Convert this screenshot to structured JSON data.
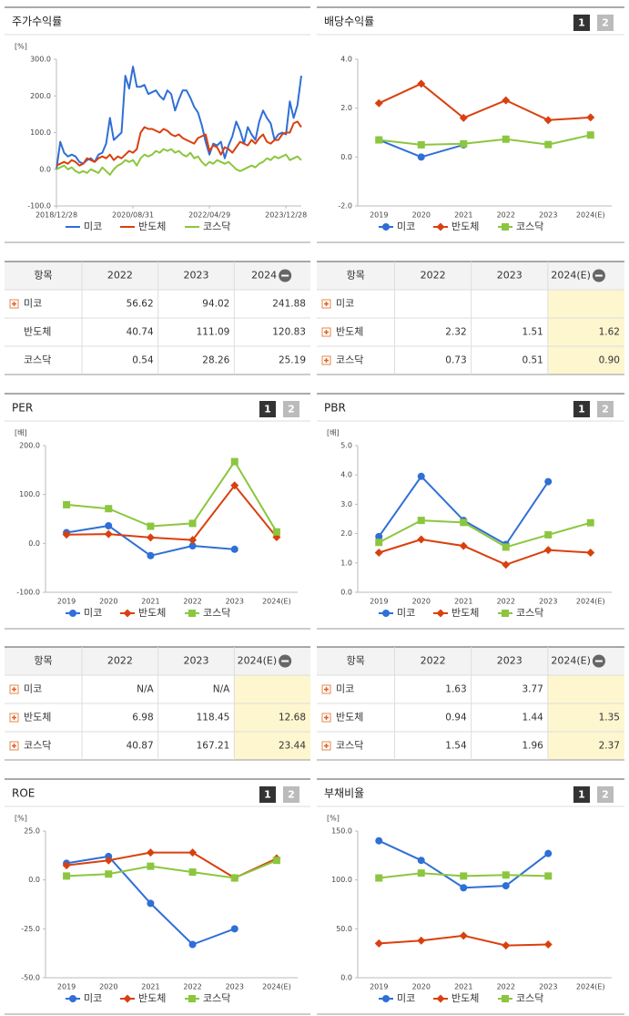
{
  "chart_data": [
    {
      "type": "line",
      "title": "주가수익률",
      "unit": "[%]",
      "markers": false,
      "xlim": [
        0,
        64
      ],
      "xticks": [
        {
          "value": 0,
          "label": "2018/12/28"
        },
        {
          "value": 20,
          "label": "2020/08/31"
        },
        {
          "value": 40,
          "label": "2022/04/29"
        },
        {
          "value": 60,
          "label": "2023/12/28"
        }
      ],
      "ylim": [
        -100,
        300
      ],
      "yticks": [
        {
          "value": -100,
          "label": "-100.0"
        },
        {
          "value": 0,
          "label": "0.0"
        },
        {
          "value": 100,
          "label": "100.0"
        },
        {
          "value": 200,
          "label": "200.0"
        },
        {
          "value": 300,
          "label": "300.0"
        }
      ],
      "series": [
        {
          "name": "미코",
          "color": "#2f6fd6",
          "marker": "circle",
          "values": [
            0,
            75,
            45,
            35,
            40,
            35,
            20,
            15,
            25,
            30,
            20,
            40,
            45,
            70,
            140,
            80,
            90,
            100,
            255,
            220,
            280,
            225,
            225,
            230,
            205,
            210,
            215,
            200,
            190,
            215,
            205,
            160,
            190,
            215,
            215,
            195,
            170,
            155,
            120,
            75,
            40,
            70,
            65,
            75,
            30,
            65,
            90,
            130,
            105,
            70,
            115,
            95,
            80,
            130,
            160,
            140,
            125,
            80,
            95,
            100,
            95,
            185,
            140,
            175,
            255
          ]
        },
        {
          "name": "반도체",
          "color": "#d9400f",
          "marker": "diamond",
          "values": [
            10,
            15,
            20,
            15,
            25,
            20,
            10,
            15,
            30,
            25,
            20,
            30,
            35,
            30,
            40,
            25,
            35,
            30,
            40,
            50,
            45,
            55,
            100,
            115,
            110,
            110,
            105,
            100,
            110,
            105,
            95,
            90,
            95,
            85,
            80,
            75,
            70,
            85,
            90,
            95,
            50,
            65,
            60,
            40,
            60,
            55,
            45,
            60,
            75,
            70,
            65,
            80,
            70,
            85,
            95,
            75,
            70,
            80,
            80,
            95,
            100,
            100,
            125,
            130,
            115
          ]
        },
        {
          "name": "코스닥",
          "color": "#8cc63f",
          "marker": "square",
          "values": [
            0,
            5,
            10,
            0,
            5,
            -5,
            -10,
            -5,
            -10,
            0,
            -5,
            -10,
            5,
            -5,
            -15,
            0,
            10,
            15,
            25,
            20,
            25,
            10,
            30,
            40,
            35,
            40,
            50,
            45,
            55,
            50,
            55,
            45,
            50,
            40,
            35,
            45,
            30,
            35,
            20,
            10,
            20,
            15,
            25,
            20,
            15,
            20,
            10,
            0,
            -5,
            0,
            5,
            10,
            5,
            15,
            20,
            30,
            25,
            35,
            30,
            35,
            40,
            25,
            30,
            35,
            25
          ]
        }
      ]
    },
    {
      "type": "line",
      "title": "배당수익률",
      "tabs": [
        "1",
        "2"
      ],
      "markers": true,
      "categories": [
        "2019",
        "2020",
        "2021",
        "2022",
        "2023",
        "2024(E)"
      ],
      "ylim": [
        -2,
        4
      ],
      "yticks": [
        {
          "value": -2,
          "label": "-2.0"
        },
        {
          "value": 0,
          "label": "0.0"
        },
        {
          "value": 2,
          "label": "2.0"
        },
        {
          "value": 4,
          "label": "4.0"
        }
      ],
      "series": [
        {
          "name": "미코",
          "color": "#2f6fd6",
          "marker": "circle",
          "values": [
            0.7,
            0.0,
            0.5,
            null,
            null,
            null
          ]
        },
        {
          "name": "반도체",
          "color": "#d9400f",
          "marker": "diamond",
          "values": [
            2.2,
            3.0,
            1.6,
            2.32,
            1.51,
            1.62
          ]
        },
        {
          "name": "코스닥",
          "color": "#8cc63f",
          "marker": "square",
          "values": [
            0.7,
            0.5,
            0.54,
            0.73,
            0.51,
            0.9
          ]
        }
      ]
    },
    {
      "type": "line",
      "title": "PER",
      "tabs": [
        "1",
        "2"
      ],
      "unit": "[배]",
      "markers": true,
      "categories": [
        "2019",
        "2020",
        "2021",
        "2022",
        "2023",
        "2024(E)"
      ],
      "ylim": [
        -100,
        200
      ],
      "yticks": [
        {
          "value": -100,
          "label": "-100.0"
        },
        {
          "value": 0,
          "label": "0.0"
        },
        {
          "value": 100,
          "label": "100.0"
        },
        {
          "value": 200,
          "label": "200.0"
        }
      ],
      "series": [
        {
          "name": "미코",
          "color": "#2f6fd6",
          "marker": "circle",
          "values": [
            22,
            36,
            -25,
            -5,
            -12,
            null
          ]
        },
        {
          "name": "반도체",
          "color": "#d9400f",
          "marker": "diamond",
          "values": [
            18,
            19,
            12,
            6.98,
            118.45,
            12.68
          ]
        },
        {
          "name": "코스닥",
          "color": "#8cc63f",
          "marker": "square",
          "values": [
            79,
            71,
            35,
            40.87,
            167.21,
            23.44
          ]
        }
      ]
    },
    {
      "type": "line",
      "title": "PBR",
      "tabs": [
        "1",
        "2"
      ],
      "unit": "[배]",
      "markers": true,
      "categories": [
        "2019",
        "2020",
        "2021",
        "2022",
        "2023",
        "2024(E)"
      ],
      "ylim": [
        0,
        5
      ],
      "yticks": [
        {
          "value": 0,
          "label": "0.0"
        },
        {
          "value": 1,
          "label": "1.0"
        },
        {
          "value": 2,
          "label": "2.0"
        },
        {
          "value": 3,
          "label": "3.0"
        },
        {
          "value": 4,
          "label": "4.0"
        },
        {
          "value": 5,
          "label": "5.0"
        }
      ],
      "series": [
        {
          "name": "미코",
          "color": "#2f6fd6",
          "marker": "circle",
          "values": [
            1.9,
            3.95,
            2.45,
            1.63,
            3.77,
            null
          ]
        },
        {
          "name": "반도체",
          "color": "#d9400f",
          "marker": "diamond",
          "values": [
            1.35,
            1.8,
            1.58,
            0.94,
            1.44,
            1.35
          ]
        },
        {
          "name": "코스닥",
          "color": "#8cc63f",
          "marker": "square",
          "values": [
            1.7,
            2.45,
            2.38,
            1.54,
            1.96,
            2.37
          ]
        }
      ]
    },
    {
      "type": "line",
      "title": "ROE",
      "tabs": [
        "1",
        "2"
      ],
      "unit": "[%]",
      "markers": true,
      "categories": [
        "2019",
        "2020",
        "2021",
        "2022",
        "2023",
        "2024(E)"
      ],
      "ylim": [
        -50,
        25
      ],
      "yticks": [
        {
          "value": -50,
          "label": "-50.0"
        },
        {
          "value": -25,
          "label": "-25.0"
        },
        {
          "value": 0,
          "label": "0.0"
        },
        {
          "value": 25,
          "label": "25.0"
        }
      ],
      "series": [
        {
          "name": "미코",
          "color": "#2f6fd6",
          "marker": "circle",
          "values": [
            8.5,
            12,
            -12,
            -33,
            -25,
            null
          ]
        },
        {
          "name": "반도체",
          "color": "#d9400f",
          "marker": "diamond",
          "values": [
            7.5,
            10,
            14,
            14,
            1,
            11
          ]
        },
        {
          "name": "코스닥",
          "color": "#8cc63f",
          "marker": "square",
          "values": [
            2,
            3,
            7,
            4,
            1,
            10
          ]
        }
      ]
    },
    {
      "type": "line",
      "title": "부채비율",
      "tabs": [
        "1",
        "2"
      ],
      "unit": "[%]",
      "markers": true,
      "categories": [
        "2019",
        "2020",
        "2021",
        "2022",
        "2023",
        "2024(E)"
      ],
      "ylim": [
        0,
        150
      ],
      "yticks": [
        {
          "value": 0,
          "label": "0.0"
        },
        {
          "value": 50,
          "label": "50.0"
        },
        {
          "value": 100,
          "label": "100.0"
        },
        {
          "value": 150,
          "label": "150.0"
        }
      ],
      "series": [
        {
          "name": "미코",
          "color": "#2f6fd6",
          "marker": "circle",
          "values": [
            140,
            120,
            92,
            94,
            127,
            null
          ]
        },
        {
          "name": "반도체",
          "color": "#d9400f",
          "marker": "diamond",
          "values": [
            35,
            38,
            43,
            33,
            34,
            null
          ]
        },
        {
          "name": "코스닥",
          "color": "#8cc63f",
          "marker": "square",
          "values": [
            102,
            107,
            104,
            105,
            104,
            null
          ]
        }
      ]
    }
  ],
  "tables": [
    {
      "header": [
        "항목",
        "2022",
        "2023",
        "2024"
      ],
      "collapsible": true,
      "highlight_last": false,
      "rows": [
        {
          "expandable": true,
          "cells": [
            "미코",
            "56.62",
            "94.02",
            "241.88"
          ]
        },
        {
          "expandable": false,
          "cells": [
            "반도체",
            "40.74",
            "111.09",
            "120.83"
          ]
        },
        {
          "expandable": false,
          "cells": [
            "코스닥",
            "0.54",
            "28.26",
            "25.19"
          ]
        }
      ]
    },
    {
      "header": [
        "항목",
        "2022",
        "2023",
        "2024(E)"
      ],
      "collapsible": true,
      "highlight_last": true,
      "rows": [
        {
          "expandable": true,
          "cells": [
            "미코",
            "",
            "",
            ""
          ]
        },
        {
          "expandable": true,
          "cells": [
            "반도체",
            "2.32",
            "1.51",
            "1.62"
          ]
        },
        {
          "expandable": true,
          "cells": [
            "코스닥",
            "0.73",
            "0.51",
            "0.90"
          ]
        }
      ]
    },
    {
      "header": [
        "항목",
        "2022",
        "2023",
        "2024(E)"
      ],
      "collapsible": true,
      "highlight_last": true,
      "rows": [
        {
          "expandable": true,
          "cells": [
            "미코",
            "N/A",
            "N/A",
            ""
          ]
        },
        {
          "expandable": true,
          "cells": [
            "반도체",
            "6.98",
            "118.45",
            "12.68"
          ]
        },
        {
          "expandable": true,
          "cells": [
            "코스닥",
            "40.87",
            "167.21",
            "23.44"
          ]
        }
      ]
    },
    {
      "header": [
        "항목",
        "2022",
        "2023",
        "2024(E)"
      ],
      "collapsible": true,
      "highlight_last": true,
      "rows": [
        {
          "expandable": true,
          "cells": [
            "미코",
            "1.63",
            "3.77",
            ""
          ]
        },
        {
          "expandable": true,
          "cells": [
            "반도체",
            "0.94",
            "1.44",
            "1.35"
          ]
        },
        {
          "expandable": true,
          "cells": [
            "코스닥",
            "1.54",
            "1.96",
            "2.37"
          ]
        }
      ]
    }
  ]
}
